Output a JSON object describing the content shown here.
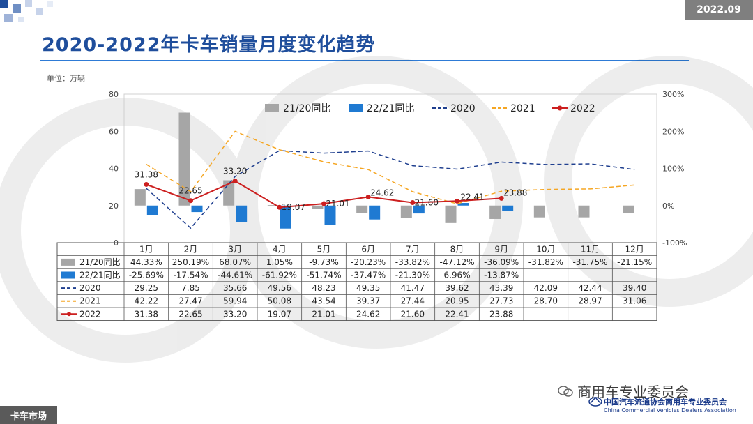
{
  "header": {
    "date": "2022.09",
    "title": "2020-2022年卡车销量月度变化趋势",
    "unit": "单位：万辆"
  },
  "footer": {
    "section": "卡车市场",
    "wechat": "商用车专业委员会",
    "assoc_cn": "中国汽车流通协会商用车专业委员会",
    "assoc_en": "China Commercial Vehicles Dealers Association"
  },
  "colors": {
    "gray": "#a6a6a6",
    "blue": "#1f7ad2",
    "navy": "#1f3f8f",
    "orange": "#f5a623",
    "red": "#cc1f1f",
    "title": "#1f4e9c"
  },
  "chart_data": {
    "type": "bar",
    "categories": [
      "1月",
      "2月",
      "3月",
      "4月",
      "5月",
      "6月",
      "7月",
      "8月",
      "9月",
      "10月",
      "11月",
      "12月"
    ],
    "y_left": {
      "ticks": [
        "0",
        "20",
        "40",
        "60",
        "80"
      ],
      "range": [
        0,
        80
      ]
    },
    "y_right": {
      "ticks": [
        "-100%",
        "0%",
        "100%",
        "200%",
        "300%"
      ],
      "range": [
        -100,
        300
      ]
    },
    "series": [
      {
        "name": "21/20同比",
        "kind": "bar",
        "axis": "right",
        "color": "#a6a6a6",
        "values": [
          44.33,
          250.19,
          68.07,
          1.05,
          -9.73,
          -20.23,
          -33.82,
          -47.12,
          -36.09,
          -31.82,
          -31.75,
          -21.15
        ],
        "labels": [
          "44.33%",
          "250.19%",
          "68.07%",
          "1.05%",
          "-9.73%",
          "-20.23%",
          "-33.82%",
          "-47.12%",
          "-36.09%",
          "-31.82%",
          "-31.75%",
          "-21.15%"
        ]
      },
      {
        "name": "22/21同比",
        "kind": "bar",
        "axis": "right",
        "color": "#1f7ad2",
        "values": [
          -25.69,
          -17.54,
          -44.61,
          -61.92,
          -51.74,
          -37.47,
          -21.3,
          6.96,
          -13.87,
          null,
          null,
          null
        ],
        "labels": [
          "-25.69%",
          "-17.54%",
          "-44.61%",
          "-61.92%",
          "-51.74%",
          "-37.47%",
          "-21.30%",
          "6.96%",
          "-13.87%",
          "",
          "",
          ""
        ]
      },
      {
        "name": "2020",
        "kind": "line-dash",
        "axis": "left",
        "color": "#1f3f8f",
        "values": [
          29.25,
          7.85,
          35.66,
          49.56,
          48.23,
          49.35,
          41.47,
          39.62,
          43.39,
          42.09,
          42.44,
          39.4
        ],
        "labels": [
          "29.25",
          "7.85",
          "35.66",
          "49.56",
          "48.23",
          "49.35",
          "41.47",
          "39.62",
          "43.39",
          "42.09",
          "42.44",
          "39.40"
        ]
      },
      {
        "name": "2021",
        "kind": "line-dash",
        "axis": "left",
        "color": "#f5a623",
        "values": [
          42.22,
          27.47,
          59.94,
          50.08,
          43.54,
          39.37,
          27.44,
          20.95,
          27.73,
          28.7,
          28.97,
          31.06
        ],
        "labels": [
          "42.22",
          "27.47",
          "59.94",
          "50.08",
          "43.54",
          "39.37",
          "27.44",
          "20.95",
          "27.73",
          "28.70",
          "28.97",
          "31.06"
        ]
      },
      {
        "name": "2022",
        "kind": "line-marker",
        "axis": "left",
        "color": "#cc1f1f",
        "values": [
          31.38,
          22.65,
          33.2,
          19.07,
          21.01,
          24.62,
          21.6,
          22.41,
          23.88,
          null,
          null,
          null
        ],
        "labels": [
          "31.38",
          "22.65",
          "33.20",
          "19.07",
          "21.01",
          "24.62",
          "21.60",
          "22.41",
          "23.88",
          "",
          "",
          ""
        ]
      }
    ],
    "data_labels": [
      "31.38",
      "22.65",
      "33.20",
      "19.07",
      "21.01",
      "24.62",
      "21.60",
      "22.41",
      "23.88"
    ],
    "legend_position": "top-right",
    "grid": true,
    "xlabel": "",
    "ylabel": ""
  }
}
